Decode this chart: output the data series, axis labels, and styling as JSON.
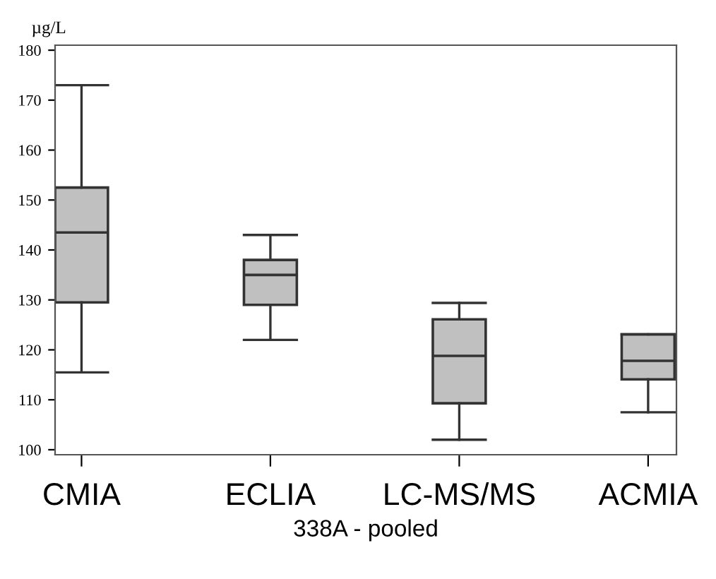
{
  "chart_data": {
    "type": "box",
    "xlabel": "338A - pooled",
    "ylabel": "µg/L",
    "categories": [
      "CMIA",
      "ECLIA",
      "LC-MS/MS",
      "ACMIA"
    ],
    "series": [
      {
        "color": "#c0c0c0",
        "boxes": [
          {
            "low": 115.5,
            "q1": 129.5,
            "median": 143.5,
            "q3": 152.5,
            "high": 173
          },
          {
            "low": 122,
            "q1": 129,
            "median": 135,
            "q3": 138,
            "high": 143
          },
          {
            "low": 102,
            "q1": 109.3,
            "median": 118.8,
            "q3": 126.1,
            "high": 129.4
          },
          {
            "low": 107.5,
            "q1": 114.1,
            "median": 117.8,
            "q3": 123.1,
            "high": 123.1
          }
        ]
      }
    ],
    "ylim": [
      99,
      181
    ],
    "yticks": [
      100,
      110,
      120,
      130,
      140,
      150,
      160,
      170,
      180
    ],
    "grid": false,
    "legend": false
  }
}
